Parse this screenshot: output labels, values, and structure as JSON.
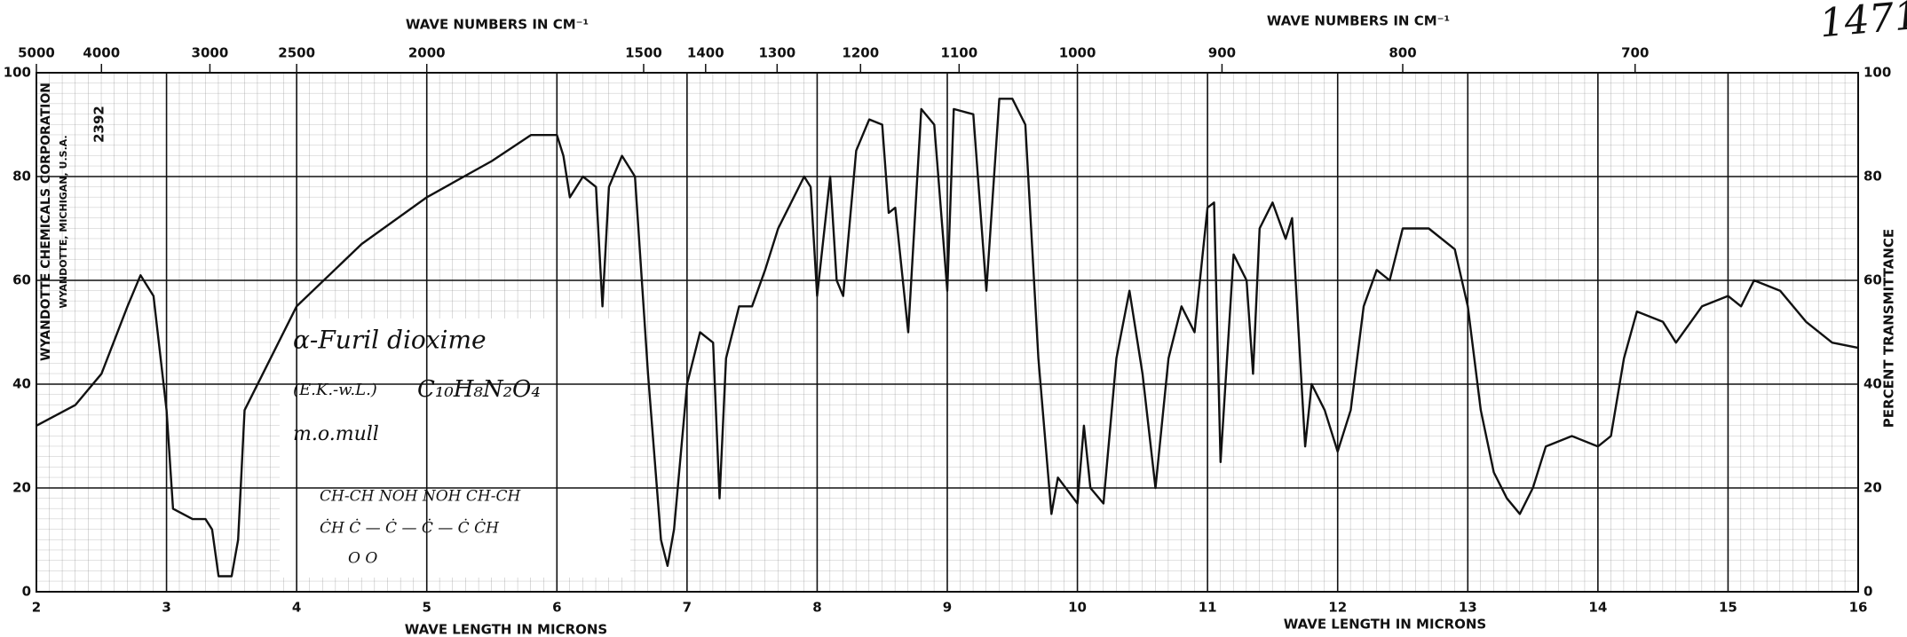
{
  "chart_data": {
    "type": "line",
    "x_label": "WAVE LENGTH IN MICRONS",
    "x2_label": "WAVE NUMBERS IN CM⁻¹",
    "y_label": "PERCENT TRANSMITTANCE",
    "x": [
      2.0,
      2.3,
      2.5,
      2.7,
      2.8,
      2.9,
      3.0,
      3.05,
      3.2,
      3.3,
      3.35,
      3.4,
      3.5,
      3.55,
      3.6,
      3.8,
      4.0,
      4.5,
      5.0,
      5.5,
      5.8,
      6.0,
      6.05,
      6.1,
      6.2,
      6.3,
      6.35,
      6.4,
      6.5,
      6.6,
      6.7,
      6.8,
      6.85,
      6.9,
      7.0,
      7.1,
      7.2,
      7.25,
      7.3,
      7.4,
      7.5,
      7.6,
      7.7,
      7.9,
      7.95,
      8.0,
      8.1,
      8.15,
      8.2,
      8.3,
      8.4,
      8.5,
      8.55,
      8.6,
      8.7,
      8.8,
      8.9,
      9.0,
      9.05,
      9.2,
      9.3,
      9.4,
      9.5,
      9.6,
      9.7,
      9.8,
      9.85,
      10.0,
      10.05,
      10.1,
      10.2,
      10.3,
      10.4,
      10.5,
      10.6,
      10.7,
      10.8,
      10.9,
      11.0,
      11.05,
      11.1,
      11.2,
      11.3,
      11.35,
      11.4,
      11.5,
      11.6,
      11.65,
      11.7,
      11.75,
      11.8,
      11.9,
      12.0,
      12.1,
      12.2,
      12.3,
      12.4,
      12.5,
      12.7,
      12.9,
      13.0,
      13.1,
      13.2,
      13.3,
      13.4,
      13.5,
      13.6,
      13.8,
      14.0,
      14.1,
      14.2,
      14.3,
      14.5,
      14.6,
      14.8,
      15.0,
      15.1,
      15.2,
      15.4,
      15.6,
      15.8,
      16.0
    ],
    "series": [
      {
        "color": "#111111",
        "values": [
          32,
          36,
          42,
          55,
          61,
          57,
          35,
          16,
          14,
          14,
          12,
          3,
          3,
          10,
          35,
          45,
          55,
          67,
          76,
          83,
          88,
          88,
          84,
          76,
          80,
          78,
          55,
          78,
          84,
          80,
          42,
          10,
          5,
          12,
          40,
          50,
          48,
          18,
          45,
          55,
          55,
          62,
          70,
          80,
          78,
          57,
          80,
          60,
          57,
          85,
          91,
          90,
          73,
          74,
          50,
          93,
          90,
          58,
          93,
          92,
          58,
          95,
          95,
          90,
          45,
          15,
          22,
          17,
          32,
          20,
          17,
          45,
          58,
          42,
          20,
          45,
          55,
          50,
          74,
          75,
          25,
          65,
          60,
          42,
          70,
          75,
          68,
          72,
          50,
          28,
          40,
          35,
          27,
          35,
          55,
          62,
          60,
          70,
          70,
          66,
          55,
          35,
          23,
          18,
          15,
          20,
          28,
          30,
          28,
          30,
          45,
          54,
          52,
          48,
          55,
          57,
          55,
          60,
          58,
          52,
          48,
          47
        ]
      }
    ],
    "xlim": [
      2,
      16
    ],
    "xticks": [
      2,
      3,
      4,
      5,
      6,
      7,
      8,
      9,
      10,
      11,
      12,
      13,
      14,
      15,
      16
    ],
    "x2ticks": [
      5000,
      4000,
      3000,
      2500,
      2000,
      1500,
      1400,
      1300,
      1200,
      1100,
      1000,
      900,
      800,
      700
    ],
    "ylim": [
      0,
      100
    ],
    "yticks": [
      0,
      20,
      40,
      60,
      80,
      100
    ],
    "grid": true,
    "annotations": [
      "1471",
      "WYANDOTTE CHEMICALS CORPORATION",
      "WYANDOTTE, MICHIGAN, U.S.A.",
      "2392",
      "α-Furil dioxime",
      "(E.K.-w.L.)",
      "C₁₀H₈N₂O₄",
      "m.o.mull",
      "CH-CH  NOH   NOH  CH-CH",
      "ĊH  Ċ — Ċ — Ċ — Ċ  ĊH",
      "O              O"
    ]
  }
}
